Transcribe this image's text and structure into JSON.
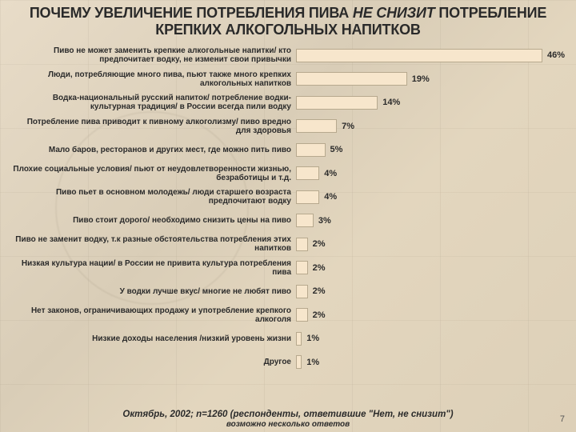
{
  "title_plain": "ПОЧЕМУ УВЕЛИЧЕНИЕ ПОТРЕБЛЕНИЯ ПИВА ",
  "title_em": "НЕ СНИЗИТ",
  "title_tail": " ПОТРЕБЛЕНИЕ КРЕПКИХ АЛКОГОЛЬНЫХ НАПИТКОВ",
  "chart": {
    "type": "bar-horizontal",
    "max": 46,
    "bar_color": "#f7e6cc",
    "bar_border": "#b7a98e",
    "label_fontsize": 10,
    "value_fontsize": 11,
    "items": [
      {
        "label": "Пиво не может заменить крепкие алкогольные напитки/ кто предпочитает водку, не изменит свои привычки",
        "value": 46
      },
      {
        "label": "Люди, потребляющие много пива, пьют также много крепких алкогольных напитков",
        "value": 19
      },
      {
        "label": "Водка-национальный русский напиток/ потребление водки-культурная традиция/ в России всегда пили водку",
        "value": 14
      },
      {
        "label": "Потребление пива приводит к пивному алкоголизму/ пиво вредно для здоровья",
        "value": 7
      },
      {
        "label": "Мало баров, ресторанов и других мест, где можно пить пиво",
        "value": 5
      },
      {
        "label": "Плохие социальные условия/ пьют от неудовлетворенности жизнью, безработицы и т.д.",
        "value": 4
      },
      {
        "label": "Пиво пьет в основном молодежь/ люди старшего возраста предпочитают водку",
        "value": 4
      },
      {
        "label": "Пиво стоит дорого/ необходимо снизить цены на пиво",
        "value": 3
      },
      {
        "label": "Пиво не заменит водку, т.к разные обстоятельства потребления этих напитков",
        "value": 2
      },
      {
        "label": "Низкая культура нации/ в России не привита культура потребления пива",
        "value": 2
      },
      {
        "label": "У водки лучше вкус/ многие не любят пиво",
        "value": 2
      },
      {
        "label": "Нет законов, ограничивающих продажу и употребление крепкого алкоголя",
        "value": 2
      },
      {
        "label": "Низкие доходы населения /низкий уровень жизни",
        "value": 1
      },
      {
        "label": "Другое",
        "value": 1
      }
    ]
  },
  "source": "Октябрь, 2002; n=1260 (респонденты, ответившие \"Нет, не снизит\")",
  "footnote": "возможно несколько ответов",
  "pagenum": "7"
}
